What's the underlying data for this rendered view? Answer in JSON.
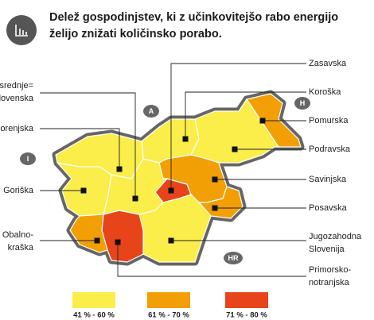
{
  "header": {
    "title_lines": [
      "Delež gospodinjstev, ki z učinkovitejšo rabo energijo",
      "želijo znižati količinsko porabo."
    ]
  },
  "map": {
    "regions": [
      {
        "label_lines": [
          "Zasavska"
        ],
        "color": "#e8441a"
      },
      {
        "label_lines": [
          "Koroška"
        ],
        "color": "#fbed4a"
      },
      {
        "label_lines": [
          "Pomurska"
        ],
        "color": "#f29f05"
      },
      {
        "label_lines": [
          "Podravska"
        ],
        "color": "#fbed4a"
      },
      {
        "label_lines": [
          "Savinjska"
        ],
        "color": "#f29f05"
      },
      {
        "label_lines": [
          "Posavska"
        ],
        "color": "#f29f05"
      },
      {
        "label_lines": [
          "Jugozahodna",
          "Slovenija"
        ],
        "color": "#fbed4a"
      },
      {
        "label_lines": [
          "Primorsko-",
          "notranjska"
        ],
        "color": "#e8441a"
      },
      {
        "label_lines": [
          "Osrednje=",
          "slovenska"
        ],
        "color": "#fbed4a"
      },
      {
        "label_lines": [
          "Gorenjska"
        ],
        "color": "#fbed4a"
      },
      {
        "label_lines": [
          "Goriška"
        ],
        "color": "#fbed4a"
      },
      {
        "label_lines": [
          "Obalno-",
          "kraška"
        ],
        "color": "#f29f05"
      }
    ],
    "countries": [
      "A",
      "H",
      "I",
      "HR"
    ]
  },
  "legend": [
    {
      "label": "41 % - 60 %",
      "color": "#fbed4a"
    },
    {
      "label": "61 % - 70 %",
      "color": "#f29f05"
    },
    {
      "label": "71 % - 80 %",
      "color": "#e8441a"
    }
  ]
}
